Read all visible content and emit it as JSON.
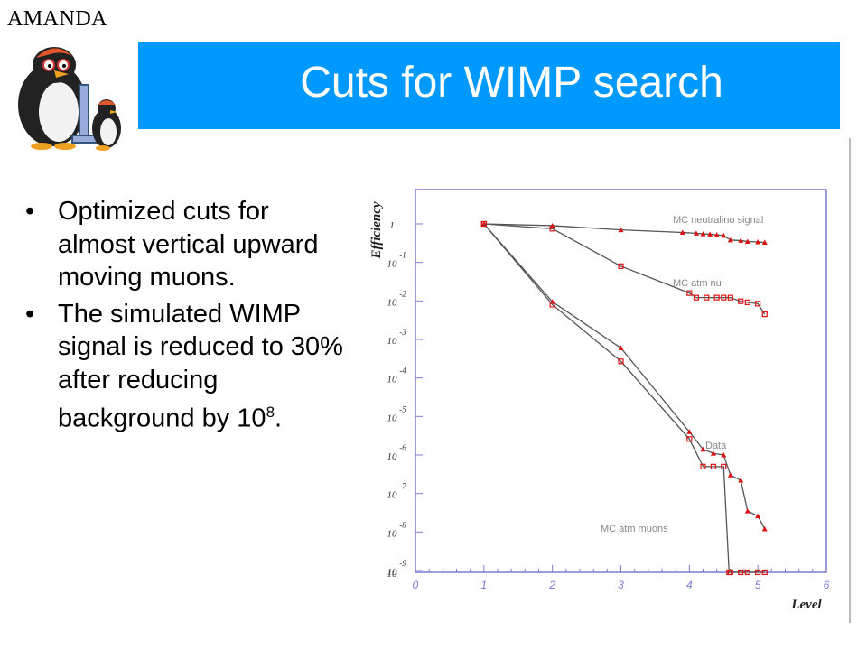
{
  "header": {
    "amanda_label": "AMANDA",
    "title": "Cuts for WIMP search"
  },
  "bullets": [
    {
      "text": "Optimized cuts for almost vertical upward moving muons."
    },
    {
      "text": "The simulated WIMP signal is reduced to 30% after reducing background by 10",
      "sup": "8",
      "tail": "."
    }
  ],
  "colors": {
    "title_bar": "#0099ff",
    "title_text": "#ffffff",
    "markers": "#dd1111",
    "lines": "#555555",
    "axes": "#7b7bd6"
  },
  "chart_data": {
    "type": "line",
    "xlabel": "Level",
    "ylabel": "Efficiency",
    "xlim": [
      0,
      6
    ],
    "x_ticks": [
      "0",
      "1",
      "2",
      "3",
      "4",
      "5",
      "6"
    ],
    "y_log_scale": true,
    "y_ticks": [
      {
        "base": "1",
        "exp": ""
      },
      {
        "base": "10",
        "exp": "-1"
      },
      {
        "base": "10",
        "exp": "-2"
      },
      {
        "base": "10",
        "exp": "-3"
      },
      {
        "base": "10",
        "exp": "-4"
      },
      {
        "base": "10",
        "exp": "-5"
      },
      {
        "base": "10",
        "exp": "-6"
      },
      {
        "base": "10",
        "exp": "-7"
      },
      {
        "base": "10",
        "exp": "-8"
      },
      {
        "base": "10",
        "exp": "-9"
      },
      {
        "base": "10",
        "exp": ""
      }
    ],
    "series": [
      {
        "name": "MC neutralino signal",
        "marker": "triangle",
        "x": [
          1,
          2,
          3,
          3.9,
          4.1,
          4.2,
          4.3,
          4.4,
          4.5,
          4.6,
          4.75,
          4.85,
          5.0,
          5.1
        ],
        "y": [
          1,
          0.9,
          0.7,
          0.6,
          0.57,
          0.55,
          0.54,
          0.52,
          0.5,
          0.38,
          0.37,
          0.35,
          0.34,
          0.33
        ]
      },
      {
        "name": "MC atm nu",
        "marker": "square",
        "x": [
          1,
          2,
          3,
          4,
          4.1,
          4.25,
          4.4,
          4.5,
          4.6,
          4.75,
          4.85,
          5.0,
          5.1
        ],
        "y": [
          1,
          0.75,
          0.08,
          0.016,
          0.0122,
          0.0122,
          0.0122,
          0.0122,
          0.0122,
          0.0098,
          0.0092,
          0.0085,
          0.0045
        ]
      },
      {
        "name": "Data",
        "marker": "triangle",
        "x": [
          1,
          2,
          3,
          4,
          4.2,
          4.35,
          4.5,
          4.6,
          4.75,
          4.85,
          5.0,
          5.1
        ],
        "y": [
          1,
          0.0095,
          0.0006,
          4e-06,
          1.4e-06,
          1.1e-06,
          1e-06,
          3e-07,
          2.2e-07,
          3.5e-08,
          2.6e-08,
          1.2e-08
        ]
      },
      {
        "name": "MC atm muons",
        "marker": "square",
        "x": [
          1,
          2,
          3,
          4,
          4.2,
          4.35,
          4.5,
          4.58,
          4.6,
          4.75,
          4.85,
          5.0,
          5.1
        ],
        "y": [
          1,
          0.008,
          0.00027,
          2.6e-06,
          5e-07,
          5e-07,
          5e-07,
          9e-10,
          9e-10,
          9e-10,
          9e-10,
          9e-10,
          9e-10
        ]
      }
    ]
  }
}
